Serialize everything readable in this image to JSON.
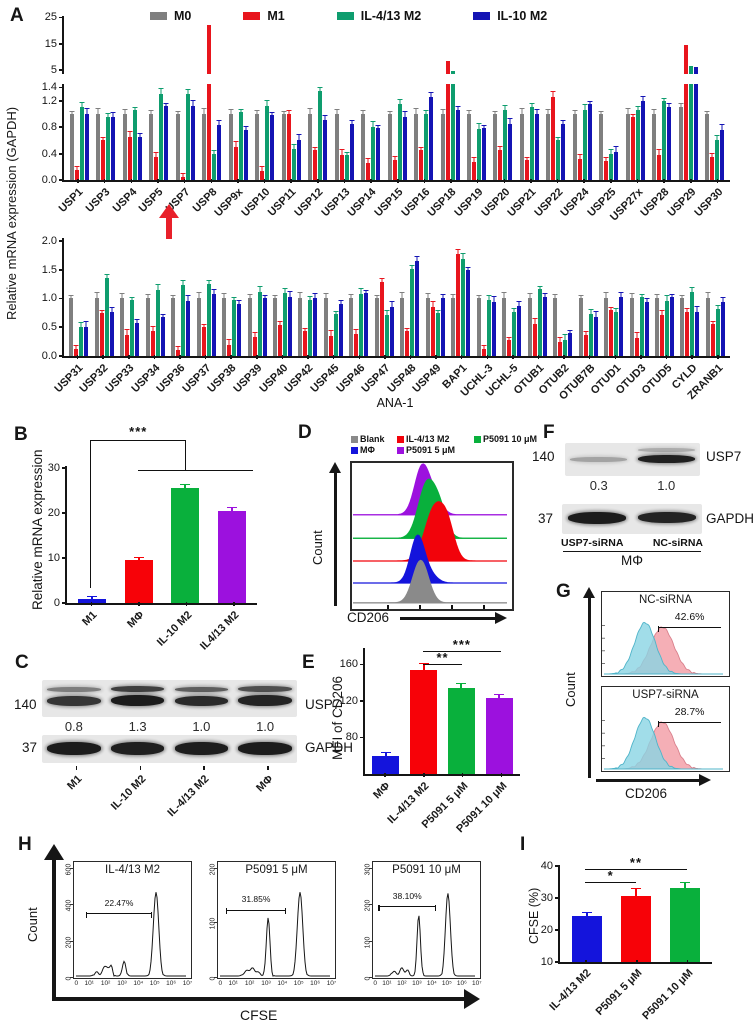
{
  "panels": {
    "A": {
      "label": "A"
    },
    "B": {
      "label": "B"
    },
    "C": {
      "label": "C",
      "blot": {
        "marker_top": "140",
        "protein_top": "USP7",
        "ratios": [
          "0.8",
          "1.3",
          "1.0",
          "1.0"
        ],
        "marker_bottom": "37",
        "protein_bottom": "GAPDH",
        "lanes": [
          "M1",
          "IL-10 M2",
          "IL-4/13 M2",
          "MΦ"
        ]
      }
    },
    "D": {
      "label": "D"
    },
    "E": {
      "label": "E"
    },
    "F": {
      "label": "F",
      "blot": {
        "marker_top": "140",
        "protein_top": "USP7",
        "ratios": [
          "0.3",
          "1.0"
        ],
        "marker_bottom": "37",
        "protein_bottom": "GAPDH",
        "lanes": [
          "USP7-siRNA",
          "NC-siRNA"
        ],
        "group": "MΦ"
      }
    },
    "G": {
      "label": "G"
    },
    "H": {
      "label": "H"
    },
    "I": {
      "label": "I"
    }
  },
  "chart_data": [
    {
      "id": "A-row1",
      "type": "bar",
      "broken_axis": true,
      "ylabel": "Relative mRNA expression (GAPDH)",
      "upper_ticks": [
        "5",
        "15",
        "25"
      ],
      "upper_ylim": [
        3.5,
        25.5
      ],
      "lower_ticks": [
        "0.0",
        "0.4",
        "0.8",
        "1.2",
        "1.4"
      ],
      "ylim": [
        0,
        1.45
      ],
      "categories": [
        "USP1",
        "USP3",
        "USP4",
        "USP5",
        "USP7",
        "USP8",
        "USP9x",
        "USP10",
        "USP11",
        "USP12",
        "USP13",
        "USP14",
        "USP15",
        "USP16",
        "USP18",
        "USP19",
        "USP20",
        "USP21",
        "USP22",
        "USP24",
        "USP25",
        "USP27x",
        "USP28",
        "USP29",
        "USP30"
      ],
      "series": [
        {
          "name": "M0",
          "color": "#7f7f7f",
          "values": [
            1,
            1,
            1,
            1,
            1,
            1,
            1,
            1,
            1,
            1,
            1,
            1,
            1,
            1,
            1,
            1,
            1,
            1,
            1,
            1,
            1,
            1,
            1,
            1.1,
            1
          ]
        },
        {
          "name": "M1",
          "color": "#e8151d",
          "values": [
            0.15,
            0.6,
            0.65,
            0.35,
            0.05,
            22,
            0.5,
            0.13,
            1.0,
            0.45,
            0.38,
            0.25,
            0.3,
            0.45,
            8.5,
            0.27,
            0.45,
            0.3,
            1.25,
            0.32,
            0.28,
            0.95,
            0.38,
            14.5,
            0.35
          ]
        },
        {
          "name": "IL-4/13 M2",
          "color": "#0e9d6e",
          "values": [
            1.1,
            0.95,
            1.05,
            1.3,
            1.3,
            0.4,
            1.02,
            1.12,
            0.47,
            1.35,
            0.38,
            0.8,
            1.15,
            1.0,
            4.8,
            0.77,
            1.05,
            1.1,
            0.6,
            1.05,
            0.4,
            1.05,
            1.2,
            6.5,
            0.6
          ]
        },
        {
          "name": "IL-10 M2",
          "color": "#1414b4",
          "values": [
            1.0,
            0.95,
            0.65,
            1.12,
            1.12,
            0.83,
            0.75,
            0.98,
            0.6,
            0.9,
            0.85,
            0.78,
            0.95,
            1.25,
            1.05,
            0.78,
            0.85,
            1.0,
            0.85,
            1.15,
            0.42,
            1.2,
            1.1,
            6.2,
            0.75
          ]
        }
      ]
    },
    {
      "id": "A-row2",
      "type": "bar",
      "xlabel": "ANA-1",
      "yticks": [
        "0.0",
        "0.5",
        "1.0",
        "1.5",
        "2.0"
      ],
      "ylim": [
        0,
        2.05
      ],
      "categories": [
        "USP31",
        "USP32",
        "USP33",
        "USP34",
        "USP36",
        "USP37",
        "USP38",
        "USP39",
        "USP40",
        "USP42",
        "USP45",
        "USP46",
        "USP47",
        "USP48",
        "USP49",
        "BAP1",
        "UCHL-3",
        "UCHL-5",
        "OTUB1",
        "OTUB2",
        "OTUB7B",
        "OTUD1",
        "OTUD3",
        "OTUD5",
        "CYLD",
        "ZRANB1"
      ],
      "series": [
        {
          "name": "M0",
          "color": "#7f7f7f",
          "values": [
            1,
            1,
            1,
            1,
            1,
            1,
            1,
            1,
            1,
            1,
            1,
            1,
            1,
            1,
            1,
            1,
            1,
            1,
            1,
            1,
            1,
            1,
            1,
            1,
            1,
            1
          ]
        },
        {
          "name": "M1",
          "color": "#e8151d",
          "values": [
            0.13,
            0.74,
            0.37,
            0.43,
            0.1,
            0.5,
            0.19,
            0.33,
            0.54,
            0.44,
            0.34,
            0.39,
            1.28,
            0.43,
            0.85,
            1.78,
            0.13,
            0.28,
            0.55,
            0.25,
            0.37,
            0.8,
            0.32,
            0.72,
            0.77,
            0.55
          ]
        },
        {
          "name": "IL-4/13 M2",
          "color": "#0e9d6e",
          "values": [
            0.5,
            1.35,
            0.97,
            1.15,
            1.23,
            1.25,
            0.97,
            1.12,
            1.09,
            0.97,
            0.73,
            1.08,
            0.72,
            1.52,
            0.75,
            1.68,
            0.97,
            0.77,
            1.17,
            0.27,
            0.73,
            0.77,
            1.02,
            0.95,
            1.12,
            0.82
          ]
        },
        {
          "name": "IL-10 M2",
          "color": "#1414b4",
          "values": [
            0.5,
            0.77,
            0.58,
            0.68,
            0.95,
            1.07,
            0.9,
            1.01,
            1.03,
            1.01,
            0.9,
            1.1,
            0.85,
            1.65,
            1.0,
            1.5,
            0.93,
            0.87,
            1.03,
            0.4,
            0.67,
            1.02,
            0.93,
            1.03,
            0.77,
            0.93
          ]
        }
      ]
    },
    {
      "id": "B",
      "type": "bar",
      "ylabel": "Relative mRNA expression",
      "categories": [
        "M1",
        "MΦ",
        "IL-10 M2",
        "IL4/13 M2"
      ],
      "values": [
        1,
        9.5,
        25.5,
        20.5
      ],
      "errors": [
        0.3,
        0.3,
        0.8,
        0.7
      ],
      "colors": [
        "#1414dc",
        "#f70208",
        "#09b03c",
        "#9c11de"
      ],
      "yticks": [
        "0",
        "10",
        "20",
        "30"
      ],
      "ylim": [
        0,
        30.5
      ],
      "significance": "***"
    },
    {
      "id": "D",
      "type": "area",
      "xlabel": "CD206",
      "ylabel": "Count",
      "legend": [
        {
          "name": "Blank",
          "color": "#8a8a8a"
        },
        {
          "name": "IL-4/13 M2",
          "color": "#f2030b"
        },
        {
          "name": "P5091 10 μM",
          "color": "#09b03c"
        },
        {
          "name": "MΦ",
          "color": "#1414dc"
        },
        {
          "name": "P5091 5 μM",
          "color": "#9c11de"
        }
      ],
      "stack_order_bottom_to_top": [
        "Blank",
        "MΦ",
        "IL-4/13 M2",
        "P5091 10 μM",
        "P5091 5 μM"
      ]
    },
    {
      "id": "E",
      "type": "bar",
      "ylabel": "MFI of CD206",
      "categories": [
        "MΦ",
        "IL-4/13 M2",
        "P5091 5 μM",
        "P5091 10 μM"
      ],
      "values": [
        60,
        154,
        134,
        123
      ],
      "errors": [
        3,
        6,
        5,
        4
      ],
      "colors": [
        "#1414dc",
        "#f70208",
        "#09b03c",
        "#9c11de"
      ],
      "yticks": [
        "80",
        "120",
        "160"
      ],
      "ylim": [
        40,
        178
      ],
      "significance": [
        {
          "between": [
            "IL-4/13 M2",
            "P5091 5 μM"
          ],
          "label": "**"
        },
        {
          "between": [
            "IL-4/13 M2",
            "P5091 10 μM"
          ],
          "label": "***"
        }
      ]
    },
    {
      "id": "G",
      "type": "histogram",
      "xlabel": "CD206",
      "ylabel": "Count",
      "plots": [
        {
          "title": "NC-siRNA",
          "percent": "42.6%"
        },
        {
          "title": "USP7-siRNA",
          "percent": "28.7%"
        }
      ],
      "colors": {
        "fill1": "#8ad4e4",
        "fill2": "#f4a6ae"
      }
    },
    {
      "id": "H",
      "type": "histogram",
      "xlabel": "CFSE",
      "ylabel": "Count",
      "xticks": [
        "0",
        "10¹",
        "10²",
        "10³",
        "10⁴",
        "10⁵",
        "10⁶",
        "10⁷"
      ],
      "plots": [
        {
          "title": "IL-4/13 M2",
          "gate": "22.47%",
          "yticks": [
            "0",
            "200",
            "400",
            "600"
          ]
        },
        {
          "title": "P5091 5 μM",
          "gate": "31.85%",
          "yticks": [
            "0",
            "100",
            "200"
          ]
        },
        {
          "title": "P5091 10 μM",
          "gate": "38.10%",
          "yticks": [
            "0",
            "100",
            "200",
            "300"
          ]
        }
      ]
    },
    {
      "id": "I",
      "type": "bar",
      "ylabel": "CFSE (%)",
      "categories": [
        "IL-4/13 M2",
        "P5091 5 μM",
        "P5091 10 μM"
      ],
      "values": [
        24.5,
        30.5,
        33
      ],
      "errors": [
        0.7,
        2.3,
        1.6
      ],
      "colors": [
        "#1414dc",
        "#f70208",
        "#09b03c"
      ],
      "yticks": [
        "10",
        "20",
        "30",
        "40"
      ],
      "ylim": [
        10,
        40
      ],
      "significance": [
        {
          "between": [
            "IL-4/13 M2",
            "P5091 5 μM"
          ],
          "label": "*"
        },
        {
          "between": [
            "IL-4/13 M2",
            "P5091 10 μM"
          ],
          "label": "**"
        }
      ]
    }
  ]
}
